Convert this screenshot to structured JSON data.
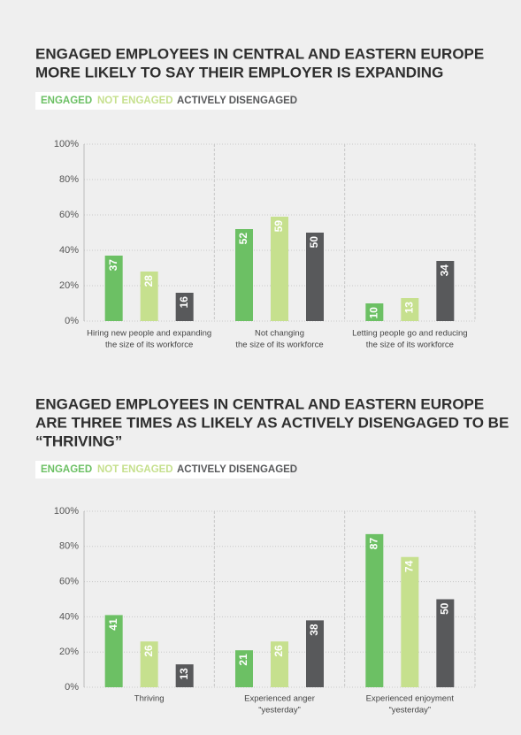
{
  "chart_data": [
    {
      "type": "bar",
      "title": [
        "ENGAGED EMPLOYEES IN CENTRAL AND EASTERN EUROPE",
        "MORE LIKELY TO SAY THEIR EMPLOYER IS EXPANDING"
      ],
      "categories": [
        [
          "Hiring new people and expanding",
          "the size of its workforce"
        ],
        [
          "Not changing",
          "the size of its workforce"
        ],
        [
          "Letting people go and reducing",
          "the size of its workforce"
        ]
      ],
      "series": [
        {
          "name": "ENGAGED",
          "color": "#6cc064",
          "values": [
            37,
            52,
            10
          ]
        },
        {
          "name": "NOT ENGAGED",
          "color": "#c6e08e",
          "values": [
            28,
            59,
            13
          ]
        },
        {
          "name": "ACTIVELY DISENGAGED",
          "color": "#58595b",
          "values": [
            16,
            50,
            34
          ]
        }
      ],
      "ylim": [
        0,
        100
      ],
      "yticks": [
        {
          "value": 0,
          "label": "0%"
        },
        {
          "value": 20,
          "label": "20%"
        },
        {
          "value": 40,
          "label": "40%"
        },
        {
          "value": 60,
          "label": "60%"
        },
        {
          "value": 80,
          "label": "80%"
        },
        {
          "value": 100,
          "label": "100%"
        }
      ],
      "grid": true
    },
    {
      "type": "bar",
      "title": [
        "ENGAGED EMPLOYEES IN CENTRAL AND EASTERN EUROPE",
        "ARE THREE TIMES AS LIKELY AS ACTIVELY DISENGAGED TO BE",
        "“THRIVING”"
      ],
      "categories": [
        [
          "Thriving"
        ],
        [
          "Experienced anger",
          "“yesterday”"
        ],
        [
          "Experienced enjoyment",
          "“yesterday”"
        ]
      ],
      "series": [
        {
          "name": "ENGAGED",
          "color": "#6cc064",
          "values": [
            41,
            21,
            87
          ]
        },
        {
          "name": "NOT ENGAGED",
          "color": "#c6e08e",
          "values": [
            26,
            26,
            74
          ]
        },
        {
          "name": "ACTIVELY DISENGAGED",
          "color": "#58595b",
          "values": [
            13,
            38,
            50
          ]
        }
      ],
      "ylim": [
        0,
        100
      ],
      "yticks": [
        {
          "value": 0,
          "label": "0%"
        },
        {
          "value": 20,
          "label": "20%"
        },
        {
          "value": 40,
          "label": "40%"
        },
        {
          "value": 60,
          "label": "60%"
        },
        {
          "value": 80,
          "label": "80%"
        },
        {
          "value": 100,
          "label": "100%"
        }
      ],
      "grid": true
    }
  ]
}
